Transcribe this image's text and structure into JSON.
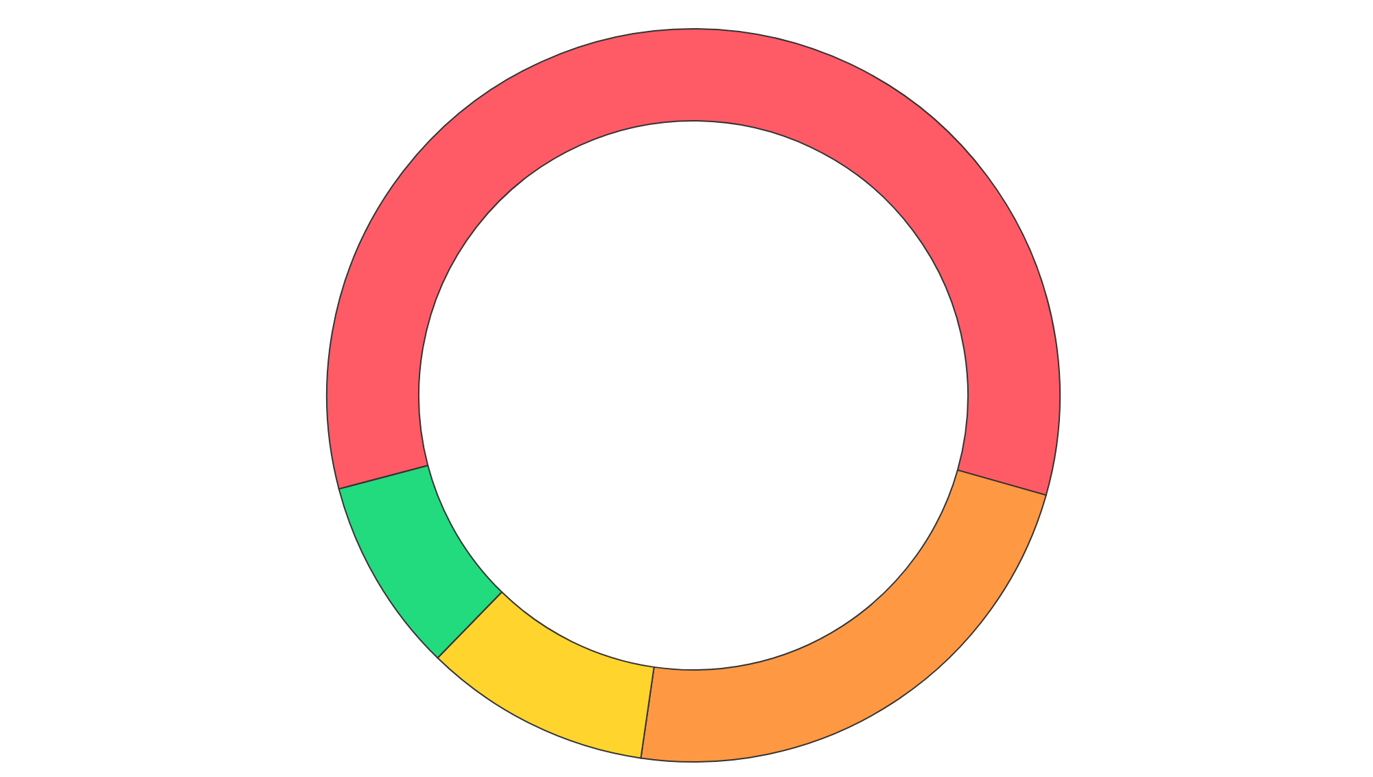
{
  "chart_data": {
    "type": "donut",
    "categories": [
      null,
      null,
      null,
      null
    ],
    "values": [
      58.5,
      22.9,
      10,
      8.6
    ],
    "colors": [
      "#fe5b67",
      "#fe9843",
      "#fed42d",
      "#22db7f"
    ]
  }
}
